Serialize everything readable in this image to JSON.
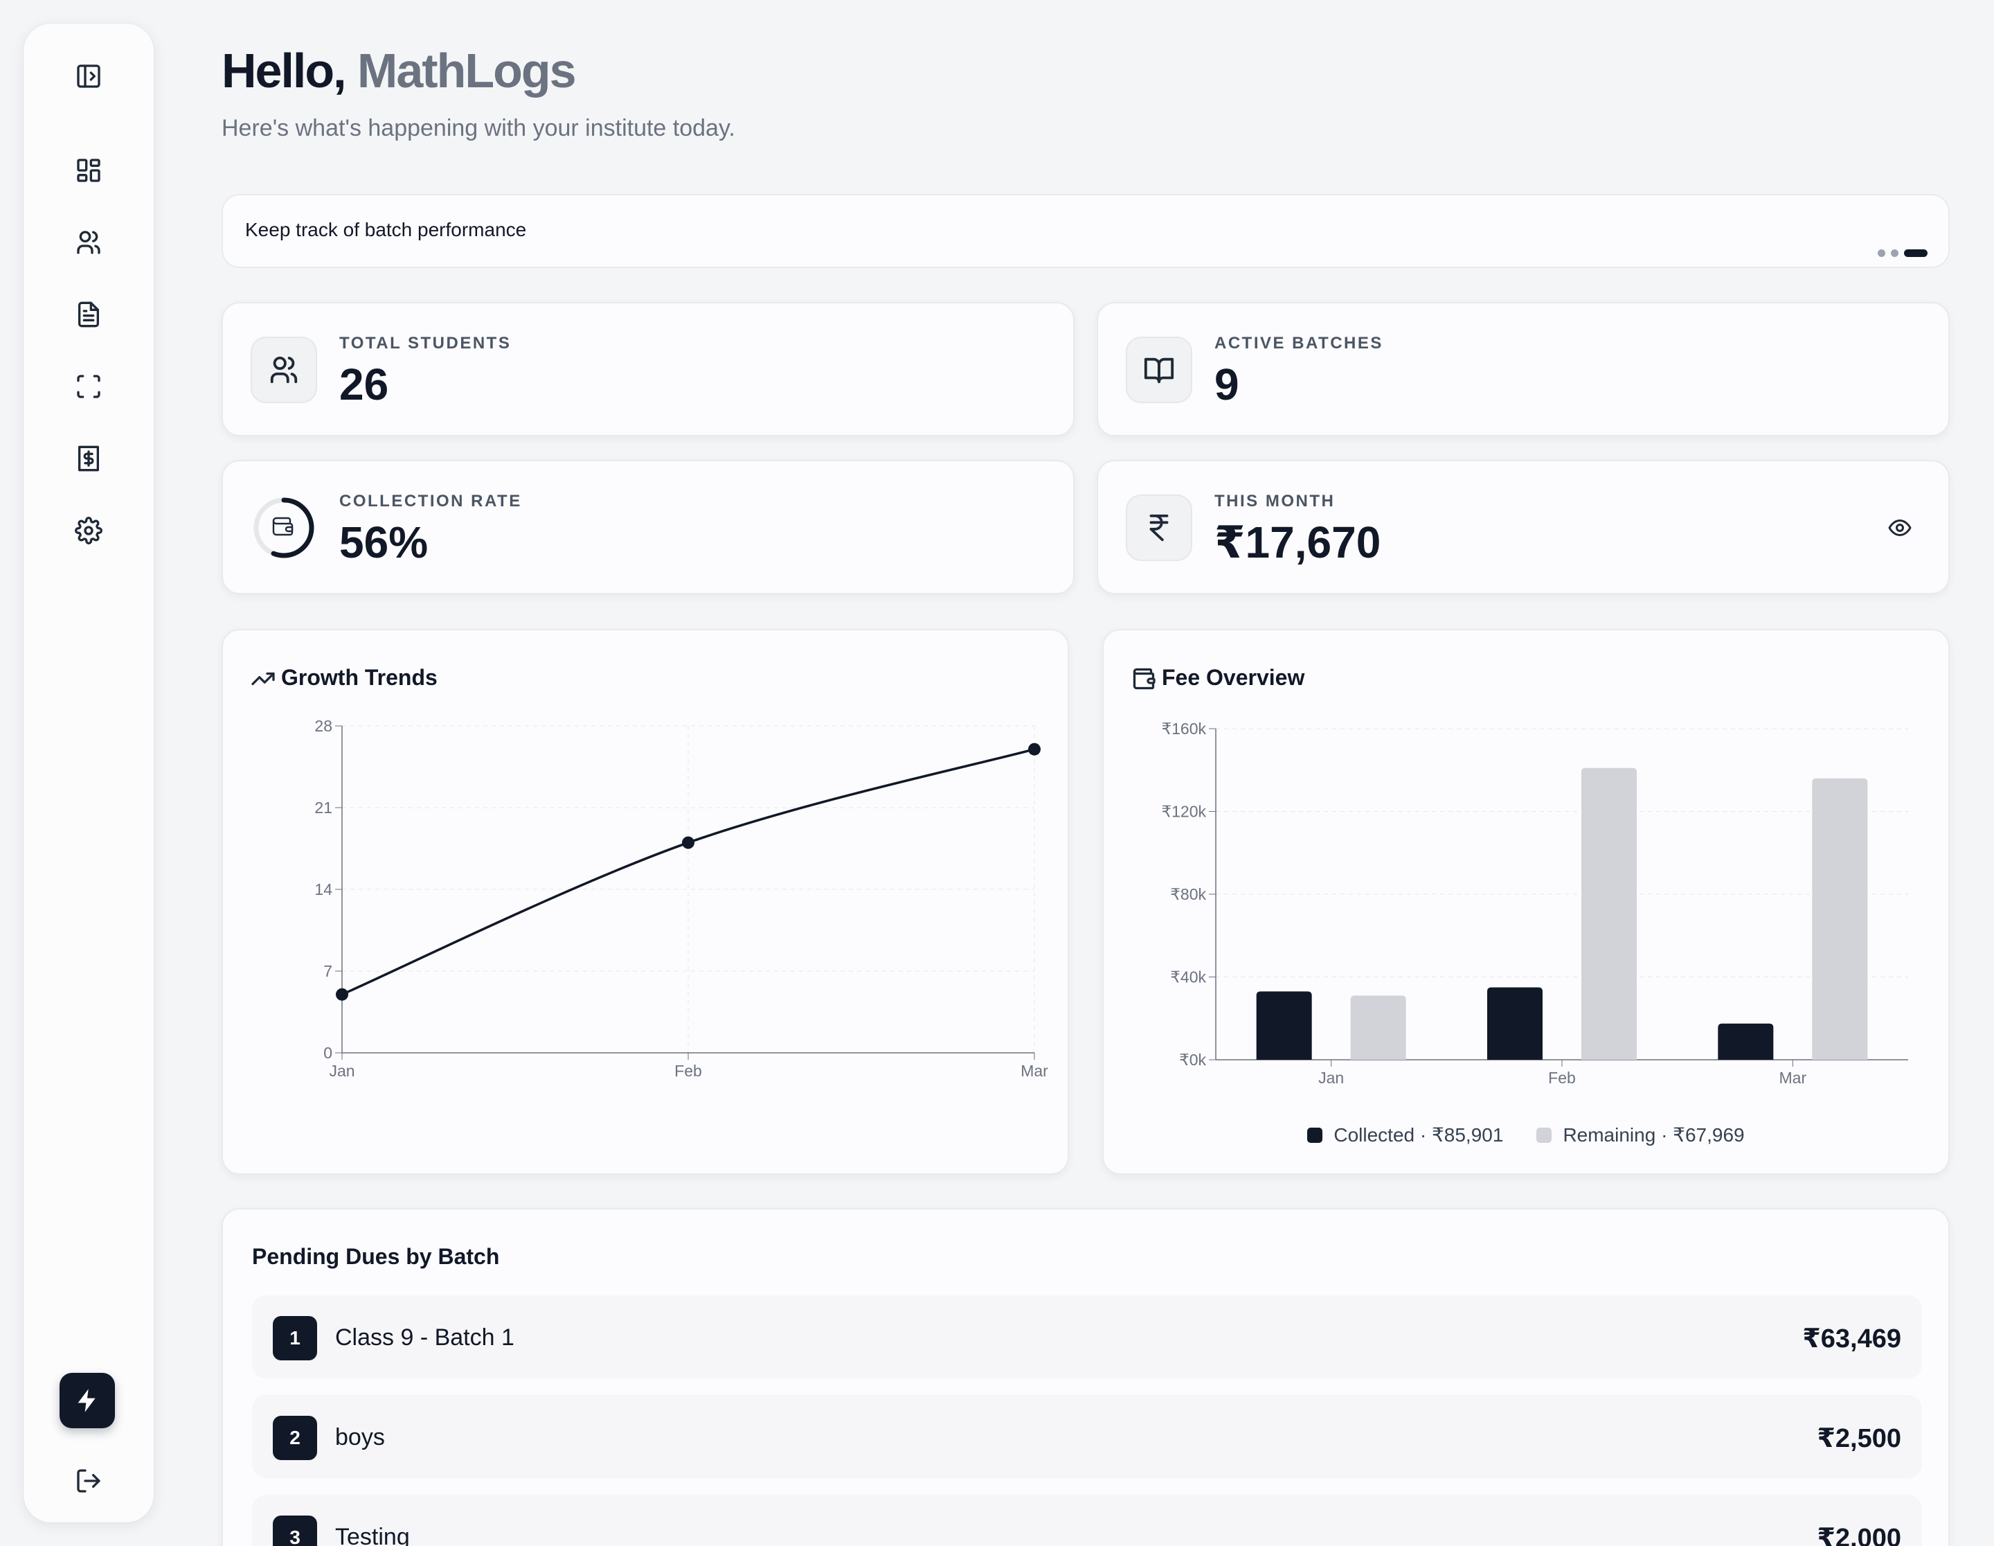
{
  "header": {
    "greeting": "Hello,",
    "name": "MathLogs",
    "subtitle": "Here's what's happening with your institute today."
  },
  "sidebar": {
    "items": [
      {
        "icon": "panel-toggle-icon"
      },
      {
        "icon": "dashboard-icon"
      },
      {
        "icon": "users-icon"
      },
      {
        "icon": "document-icon"
      },
      {
        "icon": "scan-icon"
      },
      {
        "icon": "fee-receipt-icon"
      },
      {
        "icon": "gear-icon"
      }
    ],
    "bottom": [
      {
        "icon": "bolt-icon"
      },
      {
        "icon": "logout-icon"
      }
    ]
  },
  "banner": {
    "text": "Keep track of batch performance",
    "slides": 3,
    "active_slide": 3
  },
  "stats": {
    "total_students": {
      "label": "TOTAL STUDENTS",
      "value": "26",
      "icon": "users-icon"
    },
    "active_batches": {
      "label": "ACTIVE BATCHES",
      "value": "9",
      "icon": "book-open-icon"
    },
    "collection_rate": {
      "label": "COLLECTION RATE",
      "value": "56%",
      "icon": "wallet-icon",
      "fraction": 0.56
    },
    "this_month": {
      "label": "THIS MONTH",
      "value": "₹17,670",
      "icon": "rupee-icon",
      "action_icon": "eye-icon"
    }
  },
  "growth": {
    "title": "Growth Trends",
    "icon": "trending-up-icon"
  },
  "fees": {
    "title": "Fee Overview",
    "icon": "wallet-icon",
    "legend_collected": "Collected · ₹85,901",
    "legend_remaining": "Remaining · ₹67,969"
  },
  "chart_data": [
    {
      "type": "line",
      "title": "Growth Trends",
      "x": [
        "Jan",
        "Feb",
        "Mar"
      ],
      "series": [
        {
          "values": [
            5,
            18,
            26
          ]
        }
      ],
      "yticks": [
        "0",
        "7",
        "14",
        "21",
        "28"
      ],
      "ylim": [
        0,
        28
      ],
      "grid": true,
      "color": "#111827"
    },
    {
      "type": "bar",
      "title": "Fee Overview",
      "categories": [
        "Jan",
        "Feb",
        "Mar"
      ],
      "series": [
        {
          "name": "Collected",
          "values": [
            33000,
            35000,
            17500
          ],
          "color": "#111827"
        },
        {
          "name": "Remaining",
          "values": [
            31000,
            141000,
            136000
          ],
          "color": "#d1d3d8"
        }
      ],
      "yticks": [
        "₹0k",
        "₹40k",
        "₹80k",
        "₹120k",
        "₹160k"
      ],
      "ylim": [
        0,
        160000
      ],
      "grid": true,
      "legend": "bottom"
    }
  ],
  "dues": {
    "title": "Pending Dues by Batch",
    "rows": [
      {
        "rank": "1",
        "name": "Class 9 - Batch 1",
        "amount": "₹63,469"
      },
      {
        "rank": "2",
        "name": "boys",
        "amount": "₹2,500"
      },
      {
        "rank": "3",
        "name": "Testing",
        "amount": "₹2,000"
      }
    ]
  },
  "colors": {
    "accent": "#111827",
    "muted": "#6b7280",
    "bar_remaining": "#d1d3d8",
    "background": "#f4f5f7"
  }
}
